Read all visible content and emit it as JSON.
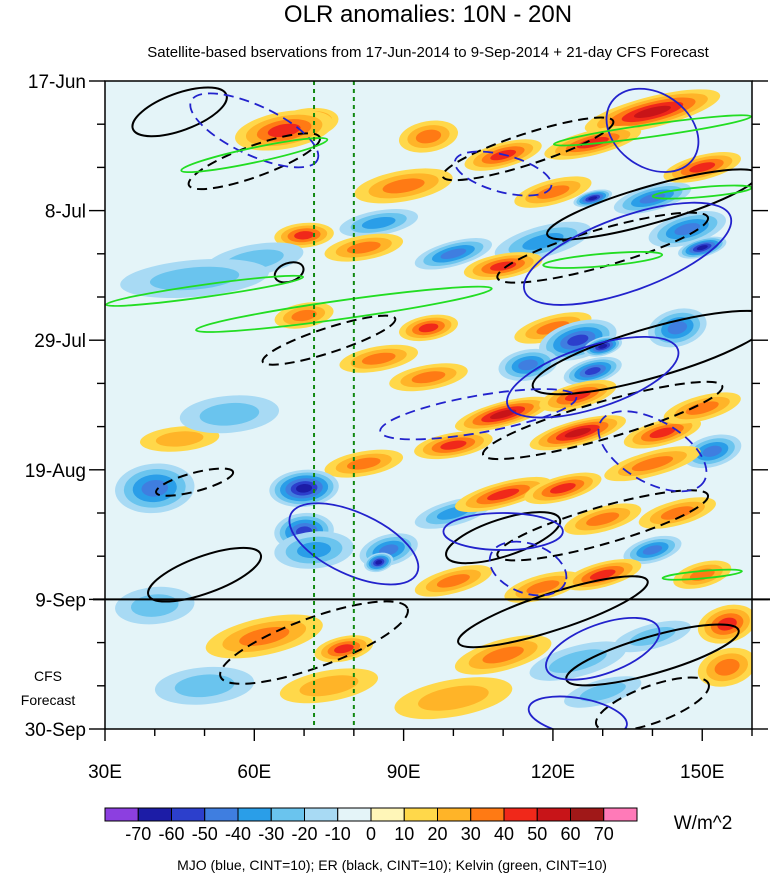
{
  "chart_data": {
    "type": "heatmap",
    "title": "OLR anomalies: 10N - 20N",
    "subtitle": "Satellite-based bservations from 17-Jun-2014 to 9-Sep-2014 + 21-day CFS Forecast",
    "x": {
      "min": 30,
      "max": 160,
      "ticks": [
        30,
        60,
        90,
        120,
        150
      ],
      "tick_labels": [
        "30E",
        "60E",
        "90E",
        "120E",
        "150E"
      ]
    },
    "y": {
      "start": "17-Jun-2014",
      "end": "30-Sep-2014",
      "days": 105,
      "ticks": [
        0,
        21,
        42,
        63,
        84,
        105
      ],
      "tick_labels": [
        "17-Jun",
        "8-Jul",
        "29-Jul",
        "19-Aug",
        "9-Sep",
        "30-Sep"
      ]
    },
    "forecast_start_day": 84,
    "forecast_label": [
      "CFS",
      "Forecast"
    ],
    "reference_lines_lon": [
      72,
      80
    ],
    "colorbar": {
      "levels": [
        -70,
        -60,
        -50,
        -40,
        -30,
        -20,
        -10,
        0,
        10,
        20,
        30,
        40,
        50,
        60,
        70
      ],
      "labels": [
        "-70",
        "-60",
        "-50",
        "-40",
        "-30",
        "-20",
        "-10",
        "0",
        "10",
        "20",
        "30",
        "40",
        "50",
        "60",
        "70"
      ],
      "colors": [
        "#8c3fe0",
        "#1c1ca6",
        "#2c3fcc",
        "#3f7ee0",
        "#2a9ee8",
        "#6ac4ee",
        "#a8daf4",
        "#e4f4f8",
        "#fff6b8",
        "#ffd84a",
        "#ffb428",
        "#ff7a14",
        "#f0281a",
        "#c81418",
        "#a01818",
        "#ff7ab8"
      ],
      "unit": "W/m^2"
    },
    "contour_legend": "MJO (blue, CINT=10); ER (black, CINT=10); Kelvin (green, CINT=10)",
    "contour_colors": {
      "mjo": "#2222cc",
      "er": "#000000",
      "kelvin": "#22dd22"
    }
  }
}
